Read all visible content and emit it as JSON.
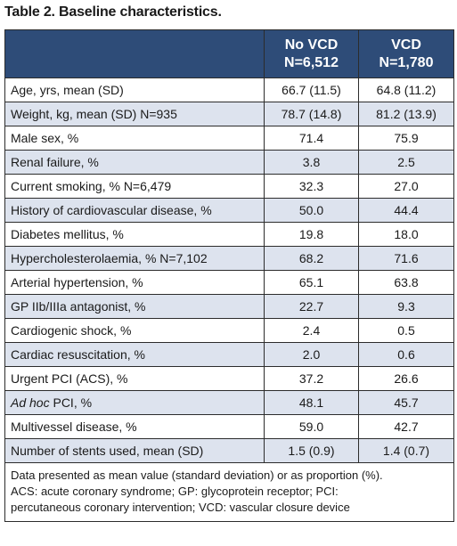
{
  "caption": "Table 2. Baseline characteristics.",
  "columns": {
    "col1_line1": "No VCD",
    "col1_line2": "N=6,512",
    "col2_line1": "VCD",
    "col2_line2": "N=1,780"
  },
  "rows": [
    {
      "label": "Age, yrs, mean (SD)",
      "no_vcd": "66.7 (11.5)",
      "vcd": "64.8 (11.2)"
    },
    {
      "label": "Weight, kg, mean (SD) N=935",
      "no_vcd": "78.7 (14.8)",
      "vcd": "81.2 (13.9)"
    },
    {
      "label": "Male sex, %",
      "no_vcd": "71.4",
      "vcd": "75.9"
    },
    {
      "label": "Renal failure, %",
      "no_vcd": "3.8",
      "vcd": "2.5"
    },
    {
      "label": "Current smoking, % N=6,479",
      "no_vcd": "32.3",
      "vcd": "27.0"
    },
    {
      "label": "History of cardiovascular disease, %",
      "no_vcd": "50.0",
      "vcd": "44.4"
    },
    {
      "label": "Diabetes mellitus, %",
      "no_vcd": "19.8",
      "vcd": "18.0"
    },
    {
      "label": "Hypercholesterolaemia, % N=7,102",
      "no_vcd": "68.2",
      "vcd": "71.6"
    },
    {
      "label": "Arterial hypertension, %",
      "no_vcd": "65.1",
      "vcd": "63.8"
    },
    {
      "label": "GP IIb/IIIa antagonist, %",
      "no_vcd": "22.7",
      "vcd": "9.3"
    },
    {
      "label": "Cardiogenic shock, %",
      "no_vcd": "2.4",
      "vcd": "0.5"
    },
    {
      "label": "Cardiac resuscitation, %",
      "no_vcd": "2.0",
      "vcd": "0.6"
    },
    {
      "label": "Urgent PCI (ACS), %",
      "no_vcd": "37.2",
      "vcd": "26.6"
    },
    {
      "label_italic": "Ad hoc",
      "label": " PCI, %",
      "no_vcd": "48.1",
      "vcd": "45.7"
    },
    {
      "label": "Multivessel disease, %",
      "no_vcd": "59.0",
      "vcd": "42.7"
    },
    {
      "label": "Number of stents used, mean (SD)",
      "no_vcd": "1.5 (0.9)",
      "vcd": "1.4 (0.7)"
    }
  ],
  "footnote": {
    "line1": "Data presented as mean value (standard deviation) or as proportion (%).",
    "line2": "ACS: acute coronary syndrome; GP: glycoprotein receptor; PCI:",
    "line3": "percutaneous coronary intervention; VCD: vascular closure device"
  }
}
